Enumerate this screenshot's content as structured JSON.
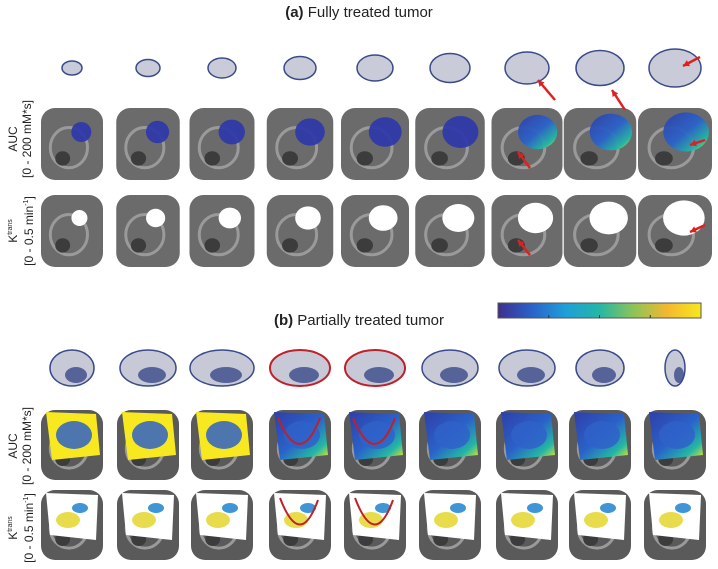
{
  "panel_a": {
    "letter": "(a)",
    "title": "Fully treated tumor",
    "rows": {
      "auc_label": "AUC",
      "auc_range": "[0 - 200 mM*s]",
      "ktrans_label": "K",
      "ktrans_sup": "trans",
      "ktrans_range_pre": "[0 - 0.5 min",
      "ktrans_range_sup": "-1",
      "ktrans_range_post": "]"
    }
  },
  "panel_b": {
    "letter": "(b)",
    "title": "Partially treated tumor",
    "rows": {
      "auc_label": "AUC",
      "auc_range": "[0 - 200 mM*s]",
      "ktrans_label": "K",
      "ktrans_sup": "trans",
      "ktrans_range_pre": "[0 - 0.5 min",
      "ktrans_range_sup": "-1",
      "ktrans_range_post": "]"
    }
  },
  "colorbar": {
    "colormap": [
      "#3e2f8e",
      "#2a62c9",
      "#1f9fd8",
      "#24b7a4",
      "#8cc35a",
      "#f4b82e",
      "#f7e81f"
    ]
  },
  "colors": {
    "arrow": "#e02020",
    "outline": "#c0202a",
    "histology": "#3a4a8a"
  },
  "columns": 9
}
